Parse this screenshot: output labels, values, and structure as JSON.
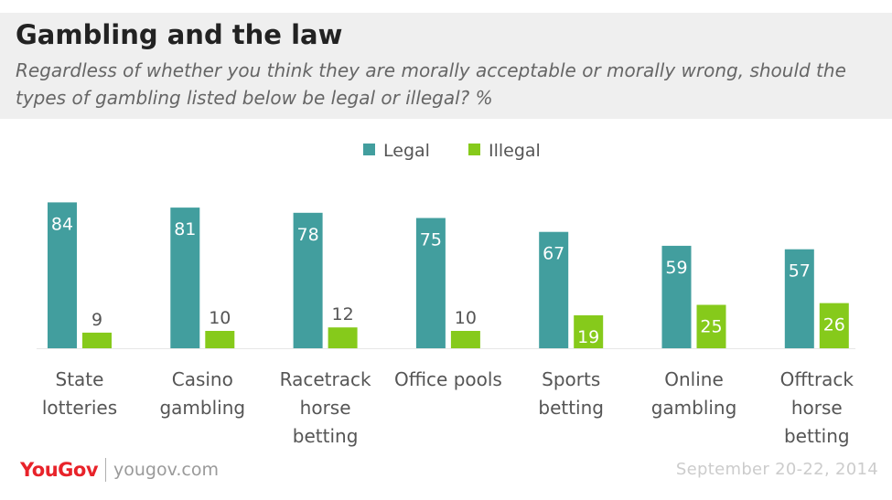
{
  "header": {
    "title": "Gambling and the law",
    "subtitle": "Regardless of whether you think they are morally acceptable or morally wrong, should the types of gambling listed below be legal or illegal? %"
  },
  "footer": {
    "brand": "YouGov",
    "url": "yougov.com",
    "date": "September 20-22, 2014"
  },
  "colors": {
    "legal": "#429e9e",
    "illegal": "#86ca1b"
  },
  "chart_data": {
    "type": "bar",
    "categories": [
      [
        "State",
        "lotteries"
      ],
      [
        "Casino",
        "gambling"
      ],
      [
        "Racetrack",
        "horse",
        "betting"
      ],
      [
        "Office pools"
      ],
      [
        "Sports",
        "betting"
      ],
      [
        "Online",
        "gambling"
      ],
      [
        "Offtrack",
        "horse",
        "betting"
      ]
    ],
    "series": [
      {
        "name": "Legal",
        "values": [
          84,
          81,
          78,
          75,
          67,
          59,
          57
        ]
      },
      {
        "name": "Illegal",
        "values": [
          9,
          10,
          12,
          10,
          19,
          25,
          26
        ]
      }
    ],
    "ylim": [
      0,
      100
    ],
    "legend_position": "top-center",
    "grid": false
  }
}
